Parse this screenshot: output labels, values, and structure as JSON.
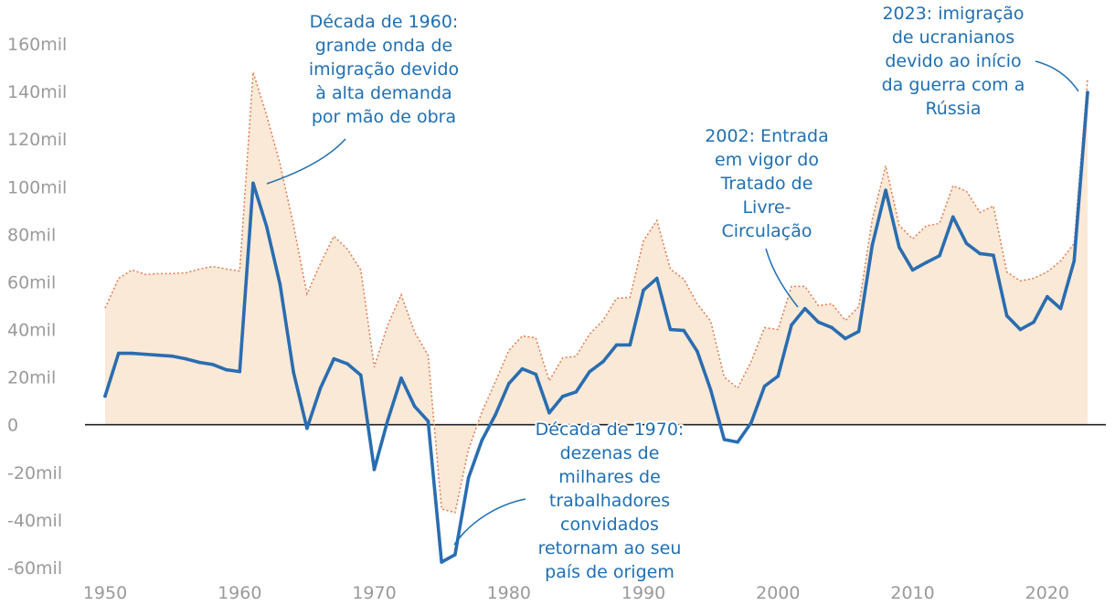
{
  "chart_data": {
    "type": "line",
    "title": "",
    "xlabel": "",
    "ylabel": "",
    "xlim": [
      1950,
      2023
    ],
    "ylim": [
      -60,
      160
    ],
    "x_ticks": [
      1950,
      1960,
      1970,
      1980,
      1990,
      2000,
      2010,
      2020
    ],
    "y_ticks": [
      {
        "value": 160,
        "label": "160mil"
      },
      {
        "value": 140,
        "label": "140mil"
      },
      {
        "value": 120,
        "label": "120mil"
      },
      {
        "value": 100,
        "label": "100mil"
      },
      {
        "value": 80,
        "label": "80mil"
      },
      {
        "value": 60,
        "label": "60mil"
      },
      {
        "value": 40,
        "label": "40mil"
      },
      {
        "value": 20,
        "label": "20mil"
      },
      {
        "value": 0,
        "label": "0"
      },
      {
        "value": -20,
        "label": "-20mil"
      },
      {
        "value": -40,
        "label": "-40mil"
      },
      {
        "value": -60,
        "label": "-60mil"
      }
    ],
    "grid": false,
    "colors": {
      "main": "#2a6db0",
      "envelope_line": "#e07b4f",
      "envelope_fill": "#fbe9d7",
      "zero_line": "#222222",
      "annotation": "#1f6fb2"
    },
    "x": [
      1950,
      1951,
      1952,
      1953,
      1954,
      1955,
      1956,
      1957,
      1958,
      1959,
      1960,
      1961,
      1962,
      1963,
      1964,
      1965,
      1966,
      1967,
      1968,
      1969,
      1970,
      1971,
      1972,
      1973,
      1974,
      1975,
      1976,
      1977,
      1978,
      1979,
      1980,
      1981,
      1982,
      1983,
      1984,
      1985,
      1986,
      1987,
      1988,
      1989,
      1990,
      1991,
      1992,
      1993,
      1994,
      1995,
      1996,
      1997,
      1998,
      1999,
      2000,
      2001,
      2002,
      2003,
      2004,
      2005,
      2006,
      2007,
      2008,
      2009,
      2010,
      2011,
      2012,
      2013,
      2014,
      2015,
      2016,
      2017,
      2018,
      2019,
      2020,
      2021,
      2022,
      2023
    ],
    "series": [
      {
        "style": "solid",
        "values": [
          12,
          30,
          30,
          29.6,
          29.2,
          28.8,
          27.7,
          26.2,
          25.3,
          23.1,
          22.3,
          101.5,
          83.3,
          58.9,
          22,
          -1.5,
          15.4,
          27.7,
          25.6,
          20.8,
          -18.8,
          1.9,
          19.6,
          7.7,
          1.5,
          -57.7,
          -54.6,
          -22.3,
          -6.5,
          4.2,
          17.3,
          23.5,
          21.2,
          5,
          11.9,
          13.8,
          22.3,
          26.5,
          33.5,
          33.5,
          56.5,
          61.5,
          40,
          39.6,
          30.8,
          14.6,
          -6.2,
          -7.3,
          0.8,
          16.2,
          20.4,
          41.9,
          48.8,
          43.1,
          40.8,
          36.2,
          39.2,
          75.4,
          98.5,
          74.6,
          65,
          68.1,
          71,
          87.3,
          76.2,
          71.9,
          71.2,
          45.8,
          40,
          43.1,
          53.8,
          48.8,
          68.8,
          139.6
        ]
      },
      {
        "style": "dotted",
        "values": [
          49,
          61.5,
          65,
          63.1,
          63.5,
          63.5,
          63.8,
          65.4,
          66.5,
          65.4,
          64.6,
          148.1,
          130,
          109.6,
          83.8,
          55,
          67.7,
          79.2,
          73.8,
          65,
          24.2,
          41.9,
          54.6,
          38.8,
          29.2,
          -35.4,
          -36.9,
          -10.4,
          5.4,
          18.1,
          31.2,
          37.3,
          36.5,
          18.5,
          28.1,
          28.8,
          38.1,
          43.8,
          53.1,
          53.5,
          77.3,
          85.8,
          65.4,
          61.2,
          50.8,
          43.5,
          20,
          15.4,
          26.5,
          40.8,
          40,
          58.1,
          58.1,
          50,
          50.8,
          43.8,
          49.6,
          86.2,
          108.8,
          83.8,
          78.1,
          83.5,
          84.6,
          100.4,
          98.1,
          89.2,
          91.9,
          64.2,
          60.4,
          61.5,
          64.2,
          68.8,
          76.2,
          145.4
        ]
      }
    ],
    "annotations": [
      {
        "target": [
          1961,
          101
        ],
        "lines": [
          "Década de 1960:",
          "grande onda de",
          "imigração devido",
          "à alta demanda",
          "por mão de obra"
        ]
      },
      {
        "target": [
          1976,
          -50
        ],
        "lines": [
          "Década de 1970:",
          "dezenas de",
          "milhares de",
          "trabalhadores",
          "convidados",
          "retornam ao seu",
          "país de origem"
        ]
      },
      {
        "target": [
          2002,
          49
        ],
        "lines": [
          "2002: Entrada",
          "em vigor do",
          "Tratado de",
          "Livre-",
          "Circulação"
        ]
      },
      {
        "target": [
          2023,
          139.6
        ],
        "lines": [
          "2023: imigração",
          "de ucranianos",
          "devido ao início",
          "da guerra com a",
          "Rússia"
        ]
      }
    ]
  }
}
